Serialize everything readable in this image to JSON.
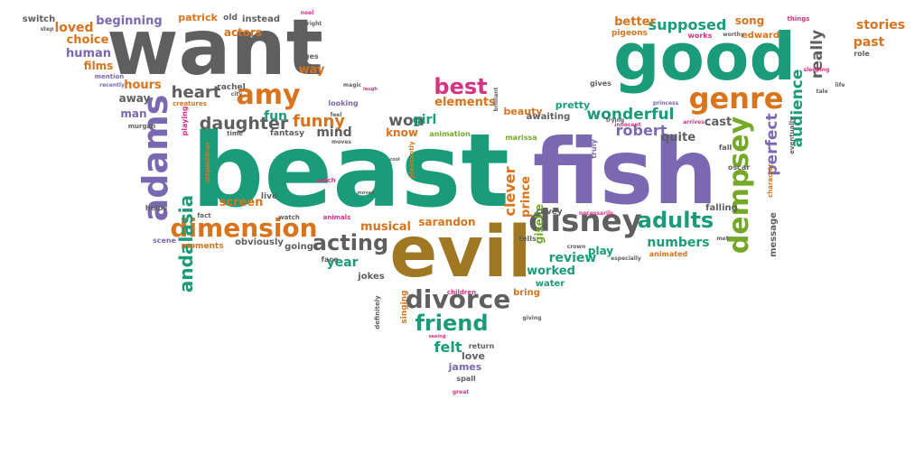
{
  "palette": {
    "green": "#1a9c7a",
    "purple": "#7b68b3",
    "gray": "#5f5f5f",
    "orange": "#d9731c",
    "olive": "#a07823",
    "lime": "#74a827",
    "magenta": "#d63384"
  },
  "words": [
    {
      "text": "beast",
      "color": "green"
    },
    {
      "text": "fish",
      "color": "purple"
    },
    {
      "text": "want",
      "color": "gray"
    },
    {
      "text": "good",
      "color": "green"
    },
    {
      "text": "evil",
      "color": "olive"
    },
    {
      "text": "disney",
      "color": "gray"
    },
    {
      "text": "divorce",
      "color": "gray"
    },
    {
      "text": "dimension",
      "color": "orange"
    },
    {
      "text": "genre",
      "color": "orange"
    },
    {
      "text": "amy",
      "color": "orange"
    },
    {
      "text": "adams",
      "color": "purple"
    },
    {
      "text": "dempsey",
      "color": "lime"
    },
    {
      "text": "adults",
      "color": "green"
    },
    {
      "text": "best",
      "color": "magenta"
    },
    {
      "text": "friend",
      "color": "green"
    },
    {
      "text": "acting",
      "color": "gray"
    },
    {
      "text": "daughter",
      "color": "gray"
    },
    {
      "text": "heart",
      "color": "gray"
    },
    {
      "text": "funny",
      "color": "orange"
    },
    {
      "text": "wonderful",
      "color": "green"
    },
    {
      "text": "perfect",
      "color": "purple"
    },
    {
      "text": "audience",
      "color": "green"
    },
    {
      "text": "really",
      "color": "gray"
    },
    {
      "text": "supposed",
      "color": "green"
    },
    {
      "text": "stories",
      "color": "orange"
    },
    {
      "text": "past",
      "color": "orange"
    },
    {
      "text": "better",
      "color": "orange"
    },
    {
      "text": "song",
      "color": "orange"
    },
    {
      "text": "edward",
      "color": "orange"
    },
    {
      "text": "things",
      "color": "magenta"
    },
    {
      "text": "pigeons",
      "color": "orange"
    },
    {
      "text": "works",
      "color": "magenta"
    },
    {
      "text": "worthy",
      "color": "gray"
    },
    {
      "text": "role",
      "color": "gray"
    },
    {
      "text": "sleeping",
      "color": "magenta"
    },
    {
      "text": "life",
      "color": "gray"
    },
    {
      "text": "tale",
      "color": "gray"
    },
    {
      "text": "switch",
      "color": "gray"
    },
    {
      "text": "step",
      "color": "gray"
    },
    {
      "text": "loved",
      "color": "orange"
    },
    {
      "text": "beginning",
      "color": "purple"
    },
    {
      "text": "choice",
      "color": "orange"
    },
    {
      "text": "human",
      "color": "purple"
    },
    {
      "text": "films",
      "color": "orange"
    },
    {
      "text": "patrick",
      "color": "orange"
    },
    {
      "text": "old",
      "color": "gray"
    },
    {
      "text": "instead",
      "color": "gray"
    },
    {
      "text": "noel",
      "color": "magenta"
    },
    {
      "text": "actors",
      "color": "orange"
    },
    {
      "text": "ages",
      "color": "gray"
    },
    {
      "text": "way",
      "color": "orange"
    },
    {
      "text": "mention",
      "color": "purple"
    },
    {
      "text": "recently",
      "color": "purple"
    },
    {
      "text": "hours",
      "color": "orange"
    },
    {
      "text": "away",
      "color": "gray"
    },
    {
      "text": "man",
      "color": "purple"
    },
    {
      "text": "murgan",
      "color": "gray"
    },
    {
      "text": "rachel",
      "color": "gray"
    },
    {
      "text": "city",
      "color": "gray"
    },
    {
      "text": "creatures",
      "color": "orange"
    },
    {
      "text": "fun",
      "color": "green"
    },
    {
      "text": "looking",
      "color": "purple"
    },
    {
      "text": "feel",
      "color": "gray"
    },
    {
      "text": "fantasy",
      "color": "gray"
    },
    {
      "text": "mind",
      "color": "gray"
    },
    {
      "text": "moves",
      "color": "gray"
    },
    {
      "text": "time",
      "color": "gray"
    },
    {
      "text": "stepmother",
      "color": "orange"
    },
    {
      "text": "andalasia",
      "color": "green"
    },
    {
      "text": "playing",
      "color": "magenta"
    },
    {
      "text": "elements",
      "color": "orange"
    },
    {
      "text": "brilliant",
      "color": "gray"
    },
    {
      "text": "won",
      "color": "gray"
    },
    {
      "text": "girl",
      "color": "green"
    },
    {
      "text": "know",
      "color": "orange"
    },
    {
      "text": "animation",
      "color": "lime"
    },
    {
      "text": "pleasantly",
      "color": "orange"
    },
    {
      "text": "beauty",
      "color": "orange"
    },
    {
      "text": "marissa",
      "color": "lime"
    },
    {
      "text": "pretty",
      "color": "green"
    },
    {
      "text": "awaiting",
      "color": "gray"
    },
    {
      "text": "gives",
      "color": "gray"
    },
    {
      "text": "princess",
      "color": "purple"
    },
    {
      "text": "robert",
      "color": "purple"
    },
    {
      "text": "trying",
      "color": "gray"
    },
    {
      "text": "innocent",
      "color": "magenta"
    },
    {
      "text": "truly",
      "color": "purple"
    },
    {
      "text": "cast",
      "color": "gray"
    },
    {
      "text": "quite",
      "color": "gray"
    },
    {
      "text": "fall",
      "color": "gray"
    },
    {
      "text": "oscar",
      "color": "gray"
    },
    {
      "text": "character",
      "color": "orange"
    },
    {
      "text": "eventually",
      "color": "gray"
    },
    {
      "text": "arrives",
      "color": "magenta"
    },
    {
      "text": "falling",
      "color": "gray"
    },
    {
      "text": "message",
      "color": "gray"
    },
    {
      "text": "met",
      "color": "gray"
    },
    {
      "text": "numbers",
      "color": "green"
    },
    {
      "text": "clever",
      "color": "orange"
    },
    {
      "text": "prince",
      "color": "orange"
    },
    {
      "text": "giselle",
      "color": "lime"
    },
    {
      "text": "covey",
      "color": "gray"
    },
    {
      "text": "necessarily",
      "color": "magenta"
    },
    {
      "text": "review",
      "color": "green"
    },
    {
      "text": "play",
      "color": "green"
    },
    {
      "text": "crown",
      "color": "gray"
    },
    {
      "text": "especially",
      "color": "gray"
    },
    {
      "text": "animated",
      "color": "orange"
    },
    {
      "text": "tells",
      "color": "gray"
    },
    {
      "text": "worked",
      "color": "green"
    },
    {
      "text": "water",
      "color": "green"
    },
    {
      "text": "bring",
      "color": "orange"
    },
    {
      "text": "giving",
      "color": "gray"
    },
    {
      "text": "children",
      "color": "magenta"
    },
    {
      "text": "singing",
      "color": "orange"
    },
    {
      "text": "jokes",
      "color": "gray"
    },
    {
      "text": "definitely",
      "color": "gray"
    },
    {
      "text": "year",
      "color": "green"
    },
    {
      "text": "musical",
      "color": "orange"
    },
    {
      "text": "sarandon",
      "color": "orange"
    },
    {
      "text": "face",
      "color": "gray"
    },
    {
      "text": "animals",
      "color": "magenta"
    },
    {
      "text": "watch",
      "color": "gray"
    },
    {
      "text": "live",
      "color": "gray"
    },
    {
      "text": "witch",
      "color": "magenta"
    },
    {
      "text": "screen",
      "color": "orange"
    },
    {
      "text": "obviously",
      "color": "gray"
    },
    {
      "text": "going",
      "color": "gray"
    },
    {
      "text": "moments",
      "color": "orange"
    },
    {
      "text": "scene",
      "color": "purple"
    },
    {
      "text": "helps",
      "color": "gray"
    },
    {
      "text": "fact",
      "color": "gray"
    },
    {
      "text": "felt",
      "color": "green"
    },
    {
      "text": "return",
      "color": "gray"
    },
    {
      "text": "love",
      "color": "gray"
    },
    {
      "text": "james",
      "color": "purple"
    },
    {
      "text": "spall",
      "color": "gray"
    },
    {
      "text": "great",
      "color": "magenta"
    },
    {
      "text": "right",
      "color": "gray"
    },
    {
      "text": "magic",
      "color": "gray"
    },
    {
      "text": "laugh",
      "color": "magenta"
    },
    {
      "text": "cool",
      "color": "gray"
    },
    {
      "text": "moved",
      "color": "gray"
    },
    {
      "text": "seeing",
      "color": "magenta"
    }
  ]
}
